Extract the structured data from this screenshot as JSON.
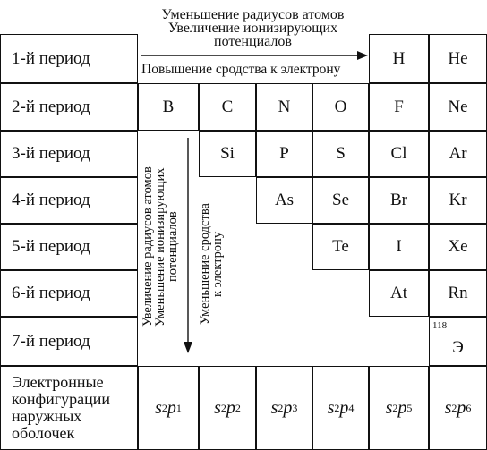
{
  "top_annotations": {
    "line1": "Уменьшение радиусов атомов",
    "line2": "Увеличение ионизирующих",
    "line3": "потенциалов",
    "affinity": "Повышение сродства к электрону"
  },
  "left_annotations": {
    "line1": "Увеличение радиусов атомов",
    "line2": "Уменьшение ионизирующих",
    "line3": "потенциалов"
  },
  "right_annotation": {
    "line1": "Уменьшение сродства",
    "line2": "к электрону"
  },
  "periods": [
    "1-й период",
    "2-й период",
    "3-й период",
    "4-й период",
    "5-й период",
    "6-й период",
    "7-й период"
  ],
  "elements": {
    "H": "H",
    "He": "He",
    "B": "B",
    "C": "C",
    "N": "N",
    "O": "O",
    "F": "F",
    "Ne": "Ne",
    "Si": "Si",
    "P": "P",
    "S": "S",
    "Cl": "Cl",
    "Ar": "Ar",
    "As": "As",
    "Se": "Se",
    "Br": "Br",
    "Kr": "Kr",
    "Te": "Te",
    "I": "I",
    "Xe": "Xe",
    "At": "At",
    "Rn": "Rn",
    "E118": "Э",
    "E118_number": "118"
  },
  "config_label": {
    "line1": "Электронные",
    "line2": "конфигурации",
    "line3": "наружных",
    "line4": "оболочек"
  },
  "configs": [
    {
      "s": "s",
      "s_exp": "2",
      "p": "p",
      "p_exp": "1"
    },
    {
      "s": "s",
      "s_exp": "2",
      "p": "p",
      "p_exp": "2"
    },
    {
      "s": "s",
      "s_exp": "2",
      "p": "p",
      "p_exp": "3"
    },
    {
      "s": "s",
      "s_exp": "2",
      "p": "p",
      "p_exp": "4"
    },
    {
      "s": "s",
      "s_exp": "2",
      "p": "p",
      "p_exp": "5"
    },
    {
      "s": "s",
      "s_exp": "2",
      "p": "p",
      "p_exp": "6"
    }
  ]
}
